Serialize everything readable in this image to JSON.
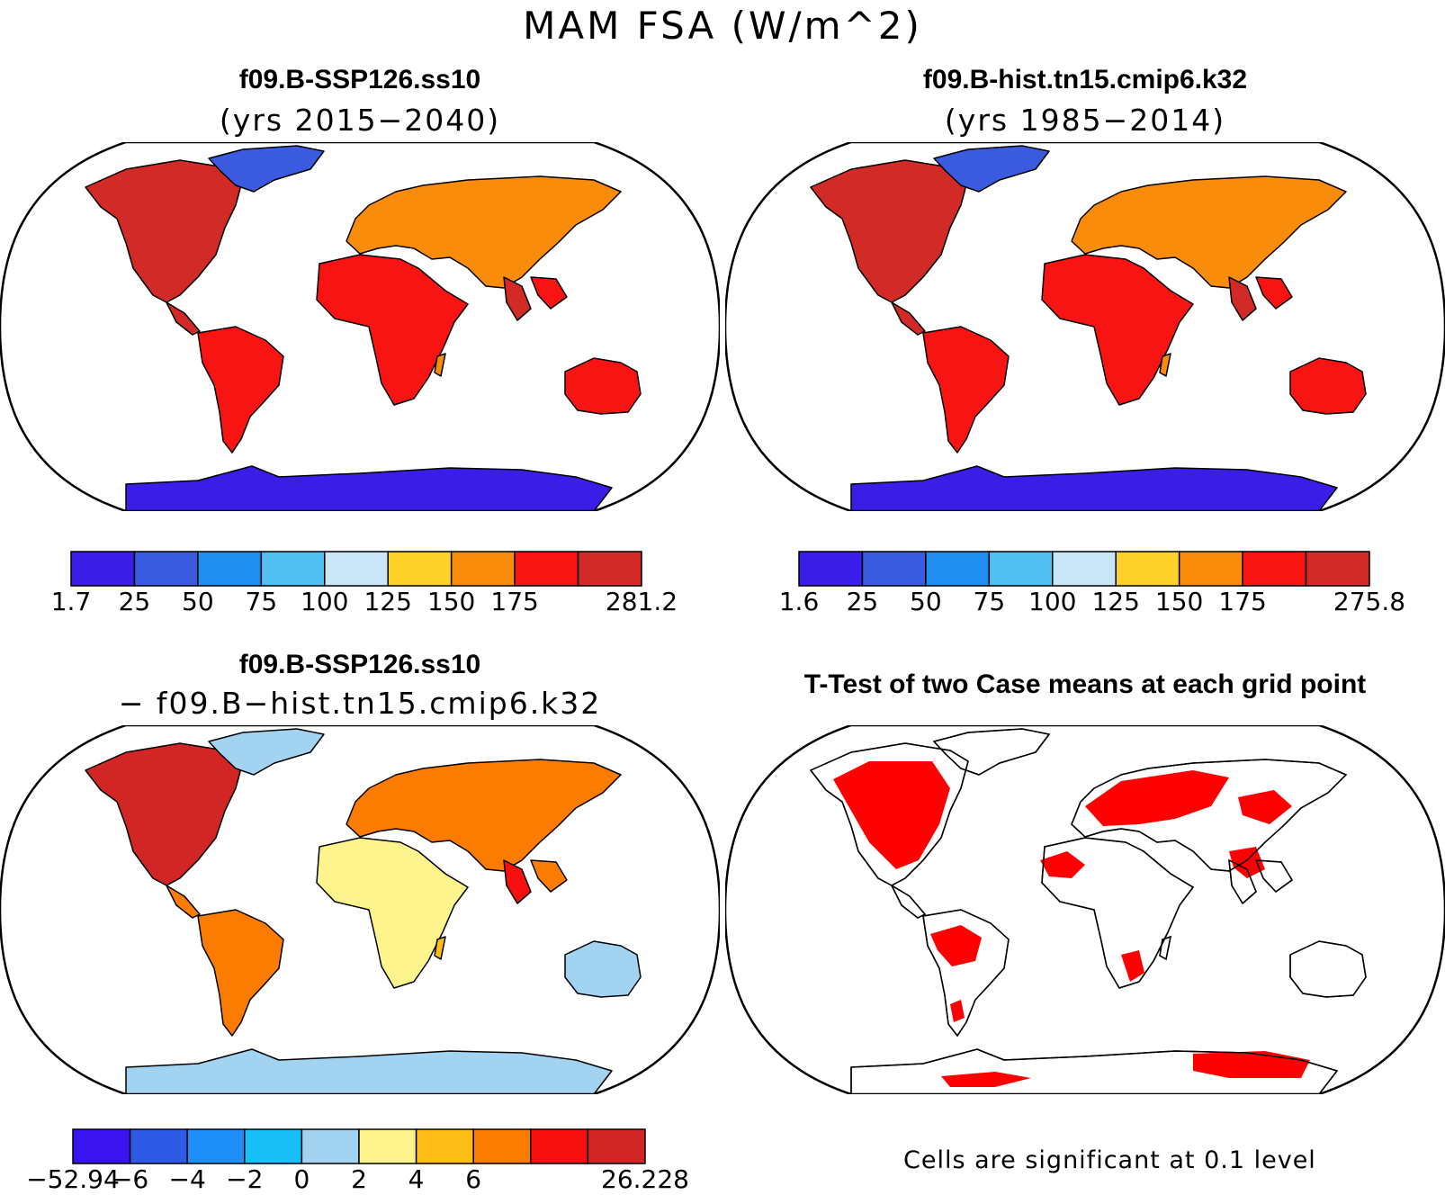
{
  "figure": {
    "title": "MAM FSA (W/m^2)"
  },
  "panels": [
    {
      "id": "case",
      "title": "f09.B-SSP126.ss10",
      "subtitle": "(yrs 2015−2040)",
      "colorbar": {
        "colors": [
          "#3a1ee8",
          "#3a5ae0",
          "#1e8ef0",
          "#50c0f0",
          "#c8e6f6",
          "#fcd22a",
          "#fa8c0c",
          "#f81412",
          "#d22a26"
        ],
        "labels": [
          "1.7",
          "25",
          "50",
          "75",
          "100",
          "125",
          "150",
          "175",
          "281.2"
        ]
      }
    },
    {
      "id": "control",
      "title": "f09.B-hist.tn15.cmip6.k32",
      "subtitle": "(yrs 1985−2014)",
      "colorbar": {
        "colors": [
          "#3a1ee8",
          "#3a5ae0",
          "#1e8ef0",
          "#50c0f0",
          "#c8e6f6",
          "#fcd22a",
          "#fa8c0c",
          "#f81412",
          "#d22a26"
        ],
        "labels": [
          "1.6",
          "25",
          "50",
          "75",
          "100",
          "125",
          "150",
          "175",
          "275.8"
        ]
      }
    },
    {
      "id": "difference",
      "title": "f09.B-SSP126.ss10",
      "subtitle": "− f09.B−hist.tn15.cmip6.k32",
      "colorbar": {
        "colors": [
          "#3a14ee",
          "#2e5ae6",
          "#1e8ef8",
          "#18bef6",
          "#a2d4f2",
          "#fef48e",
          "#fcbe16",
          "#fc7c02",
          "#f81010",
          "#d22626"
        ],
        "labels": [
          "−52.94",
          "−6",
          "−4",
          "−2",
          "0",
          "2",
          "4",
          "6",
          "26.228"
        ]
      }
    },
    {
      "id": "ttest",
      "title": "T-Test of two Case means at each grid point",
      "note": "Cells are significant at 0.1 level",
      "significant_color": "#ff0000"
    }
  ]
}
